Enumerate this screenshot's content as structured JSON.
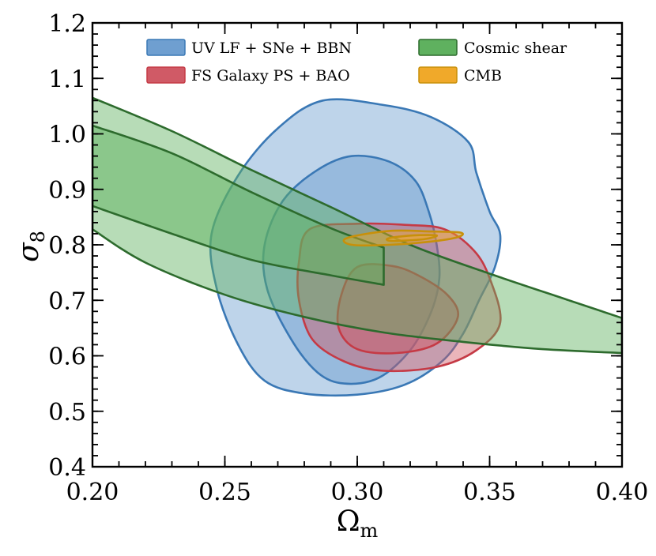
{
  "chart_data": {
    "type": "contour",
    "title": "",
    "xlabel": "Ω",
    "xlabel_sub": "m",
    "ylabel": "σ",
    "ylabel_sub": "8",
    "xlim": [
      0.2,
      0.4
    ],
    "ylim": [
      0.4,
      1.2
    ],
    "x_ticks": [
      "0.20",
      "0.25",
      "0.30",
      "0.35",
      "0.40"
    ],
    "y_ticks": [
      "0.4",
      "0.5",
      "0.6",
      "0.7",
      "0.8",
      "0.9",
      "1.0",
      "1.1",
      "1.2"
    ],
    "grid": false,
    "legend_position": "top",
    "series": [
      {
        "name": "UV LF + SNe + BBN",
        "fill": "#6f9fd0",
        "stroke": "#3a78b5",
        "contours": [
          {
            "level": "95%",
            "points": [
              [
                0.287,
                1.06
              ],
              [
                0.31,
                1.052
              ],
              [
                0.328,
                1.03
              ],
              [
                0.342,
                0.985
              ],
              [
                0.345,
                0.93
              ],
              [
                0.35,
                0.86
              ],
              [
                0.354,
                0.818
              ],
              [
                0.352,
                0.76
              ],
              [
                0.346,
                0.7
              ],
              [
                0.34,
                0.64
              ],
              [
                0.332,
                0.59
              ],
              [
                0.318,
                0.548
              ],
              [
                0.3,
                0.53
              ],
              [
                0.28,
                0.532
              ],
              [
                0.265,
                0.555
              ],
              [
                0.255,
                0.62
              ],
              [
                0.247,
                0.72
              ],
              [
                0.245,
                0.82
              ],
              [
                0.255,
                0.925
              ],
              [
                0.27,
                1.01
              ]
            ]
          },
          {
            "level": "68%",
            "points": [
              [
                0.298,
                0.96
              ],
              [
                0.312,
                0.95
              ],
              [
                0.322,
                0.915
              ],
              [
                0.327,
                0.86
              ],
              [
                0.33,
                0.8
              ],
              [
                0.331,
                0.74
              ],
              [
                0.328,
                0.68
              ],
              [
                0.32,
                0.61
              ],
              [
                0.308,
                0.56
              ],
              [
                0.295,
                0.55
              ],
              [
                0.285,
                0.57
              ],
              [
                0.275,
                0.63
              ],
              [
                0.266,
                0.72
              ],
              [
                0.265,
                0.8
              ],
              [
                0.272,
                0.88
              ],
              [
                0.285,
                0.935
              ]
            ]
          }
        ]
      },
      {
        "name": "FS Galaxy PS + BAO",
        "fill": "#d05a66",
        "stroke": "#c53a45",
        "contours": [
          {
            "level": "95%",
            "points": [
              [
                0.282,
                0.828
              ],
              [
                0.3,
                0.838
              ],
              [
                0.318,
                0.836
              ],
              [
                0.333,
                0.828
              ],
              [
                0.344,
                0.79
              ],
              [
                0.35,
                0.74
              ],
              [
                0.354,
                0.66
              ],
              [
                0.345,
                0.61
              ],
              [
                0.33,
                0.58
              ],
              [
                0.31,
                0.573
              ],
              [
                0.295,
                0.59
              ],
              [
                0.283,
                0.63
              ],
              [
                0.278,
                0.7
              ],
              [
                0.278,
                0.77
              ]
            ]
          },
          {
            "level": "68%",
            "points": [
              [
                0.3,
                0.76
              ],
              [
                0.313,
                0.762
              ],
              [
                0.323,
                0.745
              ],
              [
                0.334,
                0.71
              ],
              [
                0.338,
                0.67
              ],
              [
                0.33,
                0.622
              ],
              [
                0.315,
                0.605
              ],
              [
                0.3,
                0.612
              ],
              [
                0.293,
                0.65
              ],
              [
                0.294,
                0.71
              ]
            ]
          }
        ]
      },
      {
        "name": "Cosmic shear",
        "fill": "#5fb15f",
        "stroke": "#2d6b2d",
        "contours": [
          {
            "level": "95%",
            "top": [
              [
                0.2,
                1.065
              ],
              [
                0.23,
                1.005
              ],
              [
                0.26,
                0.935
              ],
              [
                0.29,
                0.868
              ],
              [
                0.32,
                0.8
              ],
              [
                0.35,
                0.748
              ],
              [
                0.38,
                0.7
              ],
              [
                0.4,
                0.668
              ]
            ],
            "bottom": [
              [
                0.4,
                0.605
              ],
              [
                0.37,
                0.612
              ],
              [
                0.34,
                0.625
              ],
              [
                0.31,
                0.642
              ],
              [
                0.28,
                0.67
              ],
              [
                0.25,
                0.71
              ],
              [
                0.22,
                0.768
              ],
              [
                0.2,
                0.828
              ]
            ]
          },
          {
            "level": "68%",
            "top": [
              [
                0.2,
                1.015
              ],
              [
                0.23,
                0.965
              ],
              [
                0.26,
                0.895
              ],
              [
                0.29,
                0.83
              ],
              [
                0.31,
                0.795
              ]
            ],
            "bottom": [
              [
                0.31,
                0.728
              ],
              [
                0.29,
                0.745
              ],
              [
                0.26,
                0.773
              ],
              [
                0.23,
                0.82
              ],
              [
                0.2,
                0.87
              ]
            ]
          }
        ]
      },
      {
        "name": "CMB",
        "fill": "#f0a92a",
        "stroke": "#c8900a",
        "contours": [
          {
            "level": "95%",
            "points": [
              [
                0.296,
                0.812
              ],
              [
                0.312,
                0.825
              ],
              [
                0.328,
                0.824
              ],
              [
                0.339,
                0.822
              ],
              [
                0.338,
                0.814
              ],
              [
                0.328,
                0.806
              ],
              [
                0.312,
                0.8
              ],
              [
                0.298,
                0.8
              ]
            ]
          },
          {
            "level": "68%",
            "points": [
              [
                0.312,
                0.812
              ],
              [
                0.321,
                0.817
              ],
              [
                0.33,
                0.817
              ],
              [
                0.325,
                0.81
              ],
              [
                0.313,
                0.807
              ]
            ]
          }
        ]
      }
    ]
  }
}
